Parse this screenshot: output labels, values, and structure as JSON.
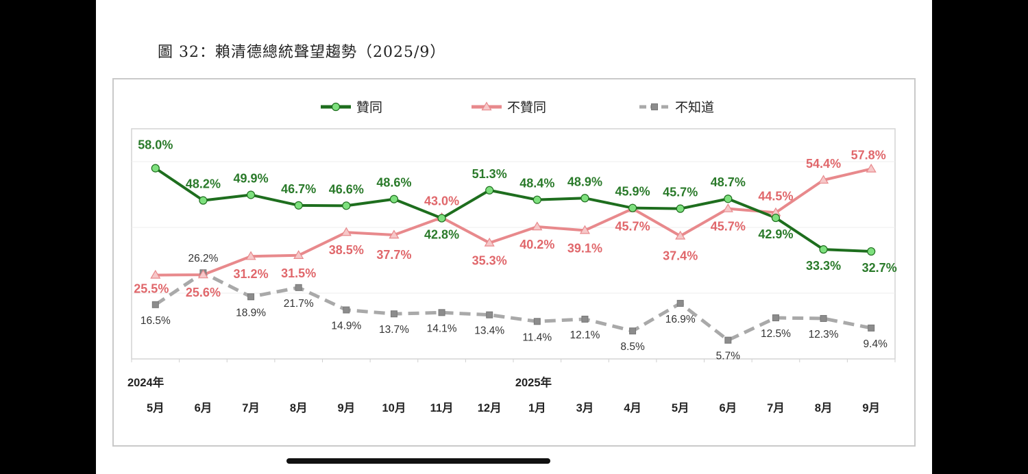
{
  "figure_title": "圖 32：賴清德總統聲望趨勢（2025/9）",
  "chart_data": {
    "type": "line",
    "title": "",
    "year_labels": [
      {
        "label": "2024年",
        "at_category": "5月"
      },
      {
        "label": "2025年",
        "at_category": "1月"
      }
    ],
    "categories": [
      "5月",
      "6月",
      "7月",
      "8月",
      "9月",
      "10月",
      "11月",
      "12月",
      "1月",
      "3月",
      "4月",
      "5月",
      "6月",
      "7月",
      "8月",
      "9月"
    ],
    "ylim": [
      0,
      70
    ],
    "grid": "horizontal",
    "legend_position": "top",
    "series": [
      {
        "name": "贊同",
        "color": "#1e6e1e",
        "marker_color": "#7ee07e",
        "marker": "circle",
        "style": "solid",
        "label_color": "#2a7a2a",
        "values": [
          58.0,
          48.2,
          49.9,
          46.7,
          46.6,
          48.6,
          42.8,
          51.3,
          48.4,
          48.9,
          45.9,
          45.7,
          48.7,
          42.9,
          33.3,
          32.7
        ],
        "labels": [
          "58.0%",
          "48.2%",
          "49.9%",
          "46.7%",
          "46.6%",
          "48.6%",
          "42.8%",
          "51.3%",
          "48.4%",
          "48.9%",
          "45.9%",
          "45.7%",
          "48.7%",
          "42.9%",
          "33.3%",
          "32.7%"
        ]
      },
      {
        "name": "不贊同",
        "color": "#e8898c",
        "marker_color": "#f6c8c9",
        "marker": "triangle",
        "style": "solid",
        "label_color": "#e0676b",
        "values": [
          25.5,
          25.6,
          31.2,
          31.5,
          38.5,
          37.7,
          43.0,
          35.3,
          40.2,
          39.1,
          45.7,
          37.4,
          45.7,
          44.5,
          54.4,
          57.8
        ],
        "labels": [
          "25.5%",
          "25.6%",
          "31.2%",
          "31.5%",
          "38.5%",
          "37.7%",
          "43.0%",
          "35.3%",
          "40.2%",
          "39.1%",
          "45.7%",
          "37.4%",
          "45.7%",
          "44.5%",
          "54.4%",
          "57.8%"
        ]
      },
      {
        "name": "不知道",
        "color": "#a9a9a9",
        "marker_color": "#8c8c8c",
        "marker": "square",
        "style": "dashed",
        "label_color": "#333333",
        "values": [
          16.5,
          26.2,
          18.9,
          21.7,
          14.9,
          13.7,
          14.1,
          13.4,
          11.4,
          12.1,
          8.5,
          16.9,
          5.7,
          12.5,
          12.3,
          9.4
        ],
        "labels": [
          "16.5%",
          "26.2%",
          "18.9%",
          "21.7%",
          "14.9%",
          "13.7%",
          "14.1%",
          "13.4%",
          "11.4%",
          "12.1%",
          "8.5%",
          "16.9%",
          "5.7%",
          "12.5%",
          "12.3%",
          "9.4%"
        ]
      }
    ]
  }
}
